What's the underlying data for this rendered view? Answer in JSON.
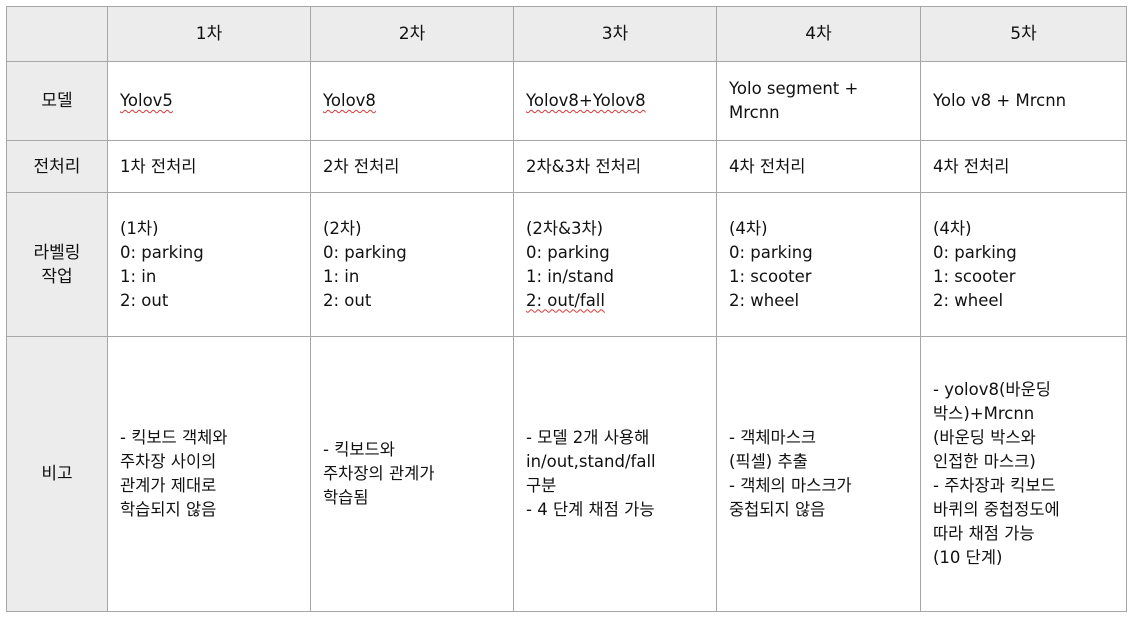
{
  "columns": [
    "1차",
    "2차",
    "3차",
    "4차",
    "5차"
  ],
  "rows": {
    "model": {
      "label": "모델",
      "cells": [
        [
          "Yolov5"
        ],
        [
          "Yolov8"
        ],
        [
          "Yolov8+Yolov8"
        ],
        [
          "Yolo segment +",
          "Mrcnn"
        ],
        [
          "Yolo v8 + Mrcnn"
        ]
      ]
    },
    "preprocess": {
      "label": "전처리",
      "cells": [
        [
          "1차 전처리"
        ],
        [
          "2차 전처리"
        ],
        [
          "2차&3차 전처리"
        ],
        [
          "4차 전처리"
        ],
        [
          "4차 전처리"
        ]
      ]
    },
    "labeling": {
      "label": [
        "라벨링",
        "작업"
      ],
      "cells": [
        [
          "(1차)",
          "0: parking",
          "1: in",
          "2: out"
        ],
        [
          "(2차)",
          "0: parking",
          "1: in",
          "2: out"
        ],
        [
          "(2차&3차)",
          "0: parking",
          "1: in/stand",
          "2: out/fall"
        ],
        [
          "(4차)",
          "0: parking",
          "1: scooter",
          "2: wheel"
        ],
        [
          "(4차)",
          "0: parking",
          "1: scooter",
          "2: wheel"
        ]
      ]
    },
    "notes": {
      "label": "비고",
      "cells": [
        [
          "- 킥보드 객체와",
          "주차장 사이의",
          "관계가 제대로",
          "학습되지 않음"
        ],
        [
          "- 킥보드와",
          "주차장의 관계가",
          "학습됨"
        ],
        [
          "- 모델 2개 사용해",
          "in/out,stand/fall",
          "구분",
          "- 4 단계 채점 가능"
        ],
        [
          "- 객체마스크",
          "(픽셀) 추출",
          "- 객체의 마스크가",
          "중첩되지 않음"
        ],
        [
          "- yolov8(바운딩",
          "박스)+Mrcnn",
          "(바운딩 박스와",
          "인접한 마스크)",
          "- 주차장과 킥보드",
          "바퀴의 중첩정도에",
          "따라 채점 가능",
          "(10 단계)"
        ]
      ]
    }
  },
  "colors": {
    "header_bg": "#ececec",
    "border": "#a6a6a6",
    "spellcheck_underline": "#d03a3a"
  }
}
